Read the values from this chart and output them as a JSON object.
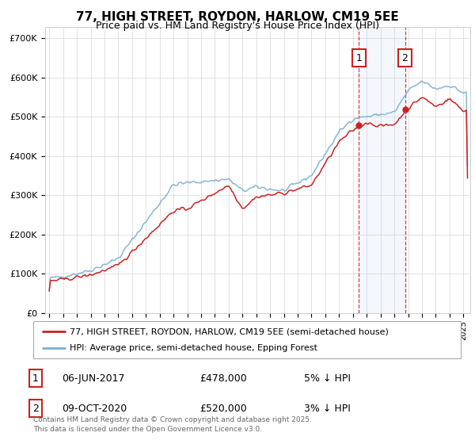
{
  "title": "77, HIGH STREET, ROYDON, HARLOW, CM19 5EE",
  "subtitle": "Price paid vs. HM Land Registry's House Price Index (HPI)",
  "ytick_values": [
    0,
    100000,
    200000,
    300000,
    400000,
    500000,
    600000,
    700000
  ],
  "ylim": [
    0,
    730000
  ],
  "xlim_start": 1994.7,
  "xlim_end": 2025.5,
  "hpi_color": "#7ab0d4",
  "price_color": "#cc2222",
  "marker1_date": 2017.44,
  "marker2_date": 2020.77,
  "marker1_price": 478000,
  "marker2_price": 520000,
  "legend_entry1": "77, HIGH STREET, ROYDON, HARLOW, CM19 5EE (semi-detached house)",
  "legend_entry2": "HPI: Average price, semi-detached house, Epping Forest",
  "table_row1": [
    "1",
    "06-JUN-2017",
    "£478,000",
    "5% ↓ HPI"
  ],
  "table_row2": [
    "2",
    "09-OCT-2020",
    "£520,000",
    "3% ↓ HPI"
  ],
  "footer": "Contains HM Land Registry data © Crown copyright and database right 2025.\nThis data is licensed under the Open Government Licence v3.0.",
  "background_color": "#ffffff",
  "grid_color": "#dddddd"
}
